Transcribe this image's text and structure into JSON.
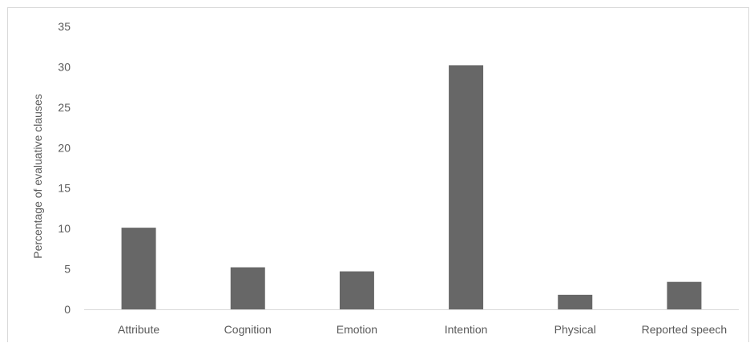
{
  "chart_data": {
    "type": "bar",
    "title": "",
    "xlabel": "",
    "ylabel": "Percentage of evaluative clauses",
    "categories": [
      "Attribute",
      "Cognition",
      "Emotion",
      "Intention",
      "Physical",
      "Reported speech"
    ],
    "values": [
      10.1,
      5.2,
      4.7,
      30.2,
      1.8,
      3.4
    ],
    "ylim": [
      0,
      35
    ],
    "yticks": [
      0,
      5,
      10,
      15,
      20,
      25,
      30,
      35
    ],
    "grid": false,
    "legend": "none",
    "bar_color": "#676767",
    "axis_color": "#d9d9d9",
    "text_color": "#595959"
  }
}
